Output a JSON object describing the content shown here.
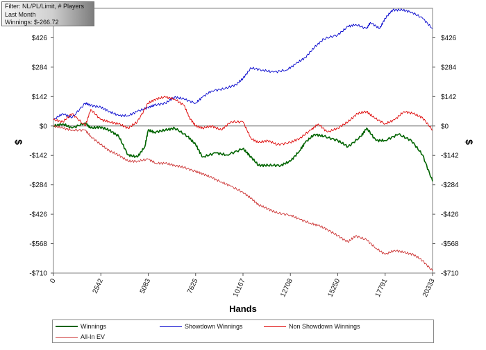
{
  "filter_box": {
    "line1": "Filter: NL/PL/Limit, # Players",
    "line2": "Last Month",
    "line3": "Winnings: $-266.72"
  },
  "chart_data": {
    "type": "line",
    "xlabel": "Hands",
    "ylabel_left": "$",
    "ylabel_right": "$",
    "xlim": [
      0,
      20333
    ],
    "ylim": [
      -710,
      568
    ],
    "x_ticks": [
      0,
      2542,
      5083,
      7625,
      10167,
      12708,
      15250,
      17791,
      20333
    ],
    "x_tick_labels": [
      "0",
      "2542",
      "5083",
      "7625",
      "10167",
      "12708",
      "15250",
      "17791",
      "20333"
    ],
    "y_ticks": [
      426,
      284,
      142,
      0,
      -142,
      -284,
      -426,
      -568,
      -710
    ],
    "y_tick_labels": [
      "$426",
      "$284",
      "$142",
      "$0",
      "-$142",
      "-$284",
      "-$426",
      "-$568",
      "-$710"
    ],
    "zero_line": true,
    "grid": false,
    "legend_position": "bottom",
    "series": [
      {
        "name": "Winnings",
        "color": "#006400",
        "points": [
          [
            0,
            0
          ],
          [
            500,
            10
          ],
          [
            1000,
            -10
          ],
          [
            1700,
            15
          ],
          [
            2000,
            -10
          ],
          [
            2500,
            -5
          ],
          [
            3000,
            -20
          ],
          [
            3500,
            -50
          ],
          [
            4000,
            -140
          ],
          [
            4500,
            -150
          ],
          [
            4900,
            -100
          ],
          [
            5083,
            -20
          ],
          [
            5400,
            -30
          ],
          [
            6000,
            -20
          ],
          [
            6500,
            -10
          ],
          [
            7200,
            -50
          ],
          [
            7625,
            -90
          ],
          [
            8000,
            -150
          ],
          [
            8700,
            -130
          ],
          [
            9300,
            -140
          ],
          [
            10167,
            -110
          ],
          [
            10500,
            -140
          ],
          [
            11000,
            -190
          ],
          [
            11500,
            -190
          ],
          [
            12200,
            -190
          ],
          [
            12708,
            -170
          ],
          [
            13200,
            -120
          ],
          [
            13500,
            -80
          ],
          [
            14000,
            -40
          ],
          [
            14500,
            -50
          ],
          [
            15250,
            -70
          ],
          [
            15800,
            -100
          ],
          [
            16500,
            -50
          ],
          [
            16800,
            -10
          ],
          [
            17300,
            -70
          ],
          [
            17791,
            -70
          ],
          [
            18500,
            -40
          ],
          [
            19200,
            -70
          ],
          [
            19800,
            -140
          ],
          [
            20333,
            -267
          ]
        ]
      },
      {
        "name": "Showdown Winnings",
        "color": "#0000cc",
        "points": [
          [
            0,
            30
          ],
          [
            500,
            60
          ],
          [
            1000,
            40
          ],
          [
            1700,
            110
          ],
          [
            2000,
            100
          ],
          [
            2542,
            90
          ],
          [
            3000,
            70
          ],
          [
            3500,
            50
          ],
          [
            4000,
            50
          ],
          [
            4500,
            70
          ],
          [
            5083,
            90
          ],
          [
            5400,
            100
          ],
          [
            6000,
            110
          ],
          [
            6500,
            140
          ],
          [
            7000,
            130
          ],
          [
            7625,
            110
          ],
          [
            8000,
            140
          ],
          [
            8500,
            170
          ],
          [
            9200,
            180
          ],
          [
            9800,
            200
          ],
          [
            10167,
            230
          ],
          [
            10600,
            280
          ],
          [
            11200,
            270
          ],
          [
            11800,
            260
          ],
          [
            12500,
            270
          ],
          [
            13000,
            300
          ],
          [
            13500,
            330
          ],
          [
            14000,
            380
          ],
          [
            14500,
            420
          ],
          [
            15250,
            440
          ],
          [
            15800,
            480
          ],
          [
            16200,
            490
          ],
          [
            16800,
            470
          ],
          [
            17000,
            500
          ],
          [
            17500,
            470
          ],
          [
            17791,
            520
          ],
          [
            18200,
            560
          ],
          [
            18700,
            560
          ],
          [
            19200,
            550
          ],
          [
            19800,
            520
          ],
          [
            20333,
            470
          ]
        ]
      },
      {
        "name": "Non Showdown Winnings",
        "color": "#dd0000",
        "points": [
          [
            0,
            30
          ],
          [
            500,
            20
          ],
          [
            1000,
            60
          ],
          [
            1700,
            0
          ],
          [
            2000,
            80
          ],
          [
            2542,
            30
          ],
          [
            3000,
            20
          ],
          [
            3500,
            10
          ],
          [
            4000,
            -10
          ],
          [
            4500,
            20
          ],
          [
            5083,
            110
          ],
          [
            5500,
            130
          ],
          [
            6000,
            140
          ],
          [
            6500,
            130
          ],
          [
            7000,
            100
          ],
          [
            7300,
            40
          ],
          [
            7625,
            0
          ],
          [
            8000,
            -10
          ],
          [
            8500,
            0
          ],
          [
            9000,
            -20
          ],
          [
            9500,
            20
          ],
          [
            10167,
            20
          ],
          [
            10600,
            -60
          ],
          [
            11000,
            -80
          ],
          [
            11500,
            -70
          ],
          [
            12000,
            -90
          ],
          [
            12708,
            -80
          ],
          [
            13200,
            -60
          ],
          [
            13800,
            -20
          ],
          [
            14200,
            10
          ],
          [
            14700,
            -30
          ],
          [
            15250,
            -10
          ],
          [
            15800,
            20
          ],
          [
            16300,
            60
          ],
          [
            16800,
            70
          ],
          [
            17200,
            40
          ],
          [
            17791,
            10
          ],
          [
            18300,
            30
          ],
          [
            18800,
            70
          ],
          [
            19300,
            60
          ],
          [
            19800,
            40
          ],
          [
            20333,
            -20
          ]
        ]
      },
      {
        "name": "All-In EV",
        "color": "#cc3333",
        "points": [
          [
            0,
            0
          ],
          [
            500,
            -10
          ],
          [
            1000,
            -20
          ],
          [
            1700,
            -20
          ],
          [
            2000,
            -50
          ],
          [
            2542,
            -90
          ],
          [
            3000,
            -120
          ],
          [
            3500,
            -140
          ],
          [
            4000,
            -170
          ],
          [
            4500,
            -170
          ],
          [
            5083,
            -160
          ],
          [
            5500,
            -180
          ],
          [
            6000,
            -180
          ],
          [
            6500,
            -190
          ],
          [
            7000,
            -200
          ],
          [
            7625,
            -220
          ],
          [
            8000,
            -230
          ],
          [
            8500,
            -250
          ],
          [
            9000,
            -270
          ],
          [
            9500,
            -290
          ],
          [
            10167,
            -320
          ],
          [
            10600,
            -350
          ],
          [
            11000,
            -380
          ],
          [
            11500,
            -400
          ],
          [
            12000,
            -420
          ],
          [
            12708,
            -430
          ],
          [
            13200,
            -450
          ],
          [
            13800,
            -470
          ],
          [
            14200,
            -480
          ],
          [
            14700,
            -500
          ],
          [
            15250,
            -530
          ],
          [
            15800,
            -560
          ],
          [
            16200,
            -530
          ],
          [
            16800,
            -550
          ],
          [
            17300,
            -590
          ],
          [
            17791,
            -620
          ],
          [
            18300,
            -600
          ],
          [
            18800,
            -610
          ],
          [
            19300,
            -620
          ],
          [
            19800,
            -650
          ],
          [
            20333,
            -700
          ]
        ]
      }
    ]
  }
}
